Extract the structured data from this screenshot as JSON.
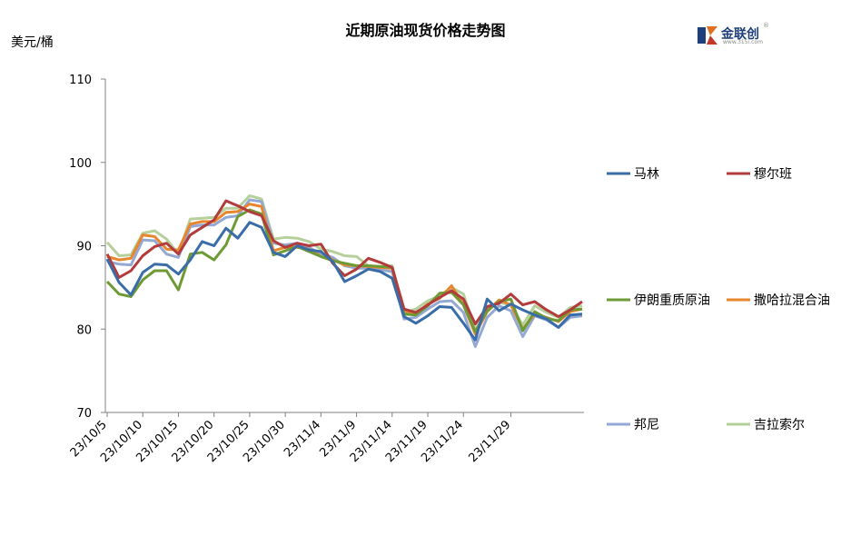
{
  "chart_data": {
    "type": "line",
    "title": "近期原油现货价格走势图",
    "y_unit": "美元/桶",
    "ylim": [
      70,
      110
    ],
    "y_ticks": [
      70,
      80,
      90,
      100,
      110
    ],
    "x_tick_labels": [
      "23/10/5",
      "23/10/10",
      "23/10/15",
      "23/10/20",
      "23/10/25",
      "23/10/30",
      "23/11/4",
      "23/11/9",
      "23/11/14",
      "23/11/19",
      "23/11/24",
      "23/11/29"
    ],
    "x_dates": [
      "10/5",
      "10/6",
      "10/9",
      "10/10",
      "10/11",
      "10/12",
      "10/13",
      "10/16",
      "10/17",
      "10/18",
      "10/19",
      "10/20",
      "10/23",
      "10/24",
      "10/25",
      "10/26",
      "10/27",
      "10/30",
      "10/31",
      "11/1",
      "11/2",
      "11/3",
      "11/6",
      "11/7",
      "11/8",
      "11/9",
      "11/10",
      "11/13",
      "11/14",
      "11/15",
      "11/16",
      "11/17",
      "11/20",
      "11/21",
      "11/22",
      "11/23",
      "11/24",
      "11/27",
      "11/28",
      "11/29",
      "11/30"
    ],
    "grid": false,
    "legend_position": "right",
    "series": [
      {
        "name": "马林",
        "color": "#3a6da8",
        "values": [
          88.4,
          85.6,
          84.1,
          86.8,
          87.8,
          87.7,
          86.6,
          88.3,
          90.5,
          90.0,
          92.1,
          90.9,
          92.8,
          92.2,
          89.2,
          88.7,
          90.0,
          89.5,
          89.3,
          88.1,
          85.7,
          86.4,
          87.2,
          86.9,
          86.1,
          81.5,
          80.7,
          81.6,
          82.7,
          82.6,
          80.7,
          78.7,
          83.6,
          82.2,
          83.0,
          82.3,
          81.7,
          81.2,
          80.2,
          81.7,
          81.8
        ]
      },
      {
        "name": "穆尔班",
        "color": "#b23b3b",
        "values": [
          89.0,
          86.2,
          87.0,
          88.8,
          89.9,
          90.3,
          89.0,
          91.3,
          92.2,
          93.1,
          95.4,
          94.8,
          94.1,
          93.6,
          90.6,
          89.8,
          90.3,
          90.0,
          90.2,
          87.9,
          86.4,
          87.2,
          88.5,
          88.0,
          87.4,
          82.4,
          82.0,
          82.9,
          83.8,
          84.6,
          83.6,
          80.6,
          82.7,
          83.1,
          84.2,
          82.9,
          83.3,
          82.3,
          81.5,
          82.3,
          83.3
        ]
      },
      {
        "name": "伊朗重质原油",
        "color": "#6e9a35",
        "values": [
          85.7,
          84.2,
          83.9,
          85.9,
          87.0,
          87.0,
          84.7,
          89.0,
          89.2,
          88.3,
          90.1,
          93.5,
          94.3,
          93.8,
          88.9,
          89.4,
          89.9,
          89.3,
          88.7,
          88.2,
          87.9,
          87.6,
          87.6,
          87.5,
          87.4,
          81.8,
          81.7,
          82.8,
          84.3,
          84.4,
          82.9,
          79.7,
          82.2,
          83.3,
          83.6,
          79.8,
          82.1,
          81.3,
          81.0,
          82.3,
          82.4
        ]
      },
      {
        "name": "撒哈拉混合油",
        "color": "#e8862e",
        "values": [
          88.7,
          88.3,
          88.5,
          91.3,
          91.1,
          89.6,
          89.5,
          92.6,
          92.9,
          92.9,
          94.0,
          94.1,
          95.0,
          94.7,
          89.4,
          89.8,
          89.8,
          89.6,
          88.7,
          88.3,
          87.7,
          87.6,
          87.5,
          87.4,
          87.3,
          82.2,
          81.8,
          83.0,
          83.7,
          85.2,
          82.9,
          79.4,
          82.1,
          83.5,
          82.9,
          80.0,
          81.8,
          81.4,
          80.9,
          82.1,
          82.4
        ]
      },
      {
        "name": "邦尼",
        "color": "#93a9d4",
        "values": [
          88.1,
          87.8,
          87.7,
          90.7,
          90.6,
          89.0,
          88.6,
          92.3,
          92.5,
          92.5,
          93.4,
          93.6,
          95.5,
          95.3,
          90.3,
          90.1,
          90.3,
          89.8,
          89.0,
          88.6,
          87.6,
          87.3,
          87.3,
          87.1,
          86.9,
          81.2,
          81.4,
          82.4,
          83.3,
          83.4,
          82.0,
          77.9,
          81.4,
          82.8,
          82.2,
          79.1,
          81.6,
          81.1,
          80.2,
          81.4,
          81.6
        ]
      },
      {
        "name": "吉拉索尔",
        "color": "#b5d09a",
        "values": [
          90.4,
          88.8,
          88.9,
          91.5,
          91.8,
          90.8,
          89.0,
          93.2,
          93.3,
          93.4,
          94.5,
          94.5,
          96.0,
          95.6,
          90.8,
          91.0,
          90.9,
          90.5,
          89.6,
          89.3,
          88.8,
          88.7,
          87.6,
          87.5,
          87.6,
          82.0,
          82.4,
          83.4,
          84.0,
          85.0,
          84.2,
          79.9,
          82.4,
          83.2,
          82.9,
          80.5,
          82.8,
          82.0,
          81.4,
          82.6,
          82.8
        ]
      }
    ]
  },
  "logo": {
    "name": "金联创",
    "sub": "www.315i.com",
    "reg": "®"
  }
}
